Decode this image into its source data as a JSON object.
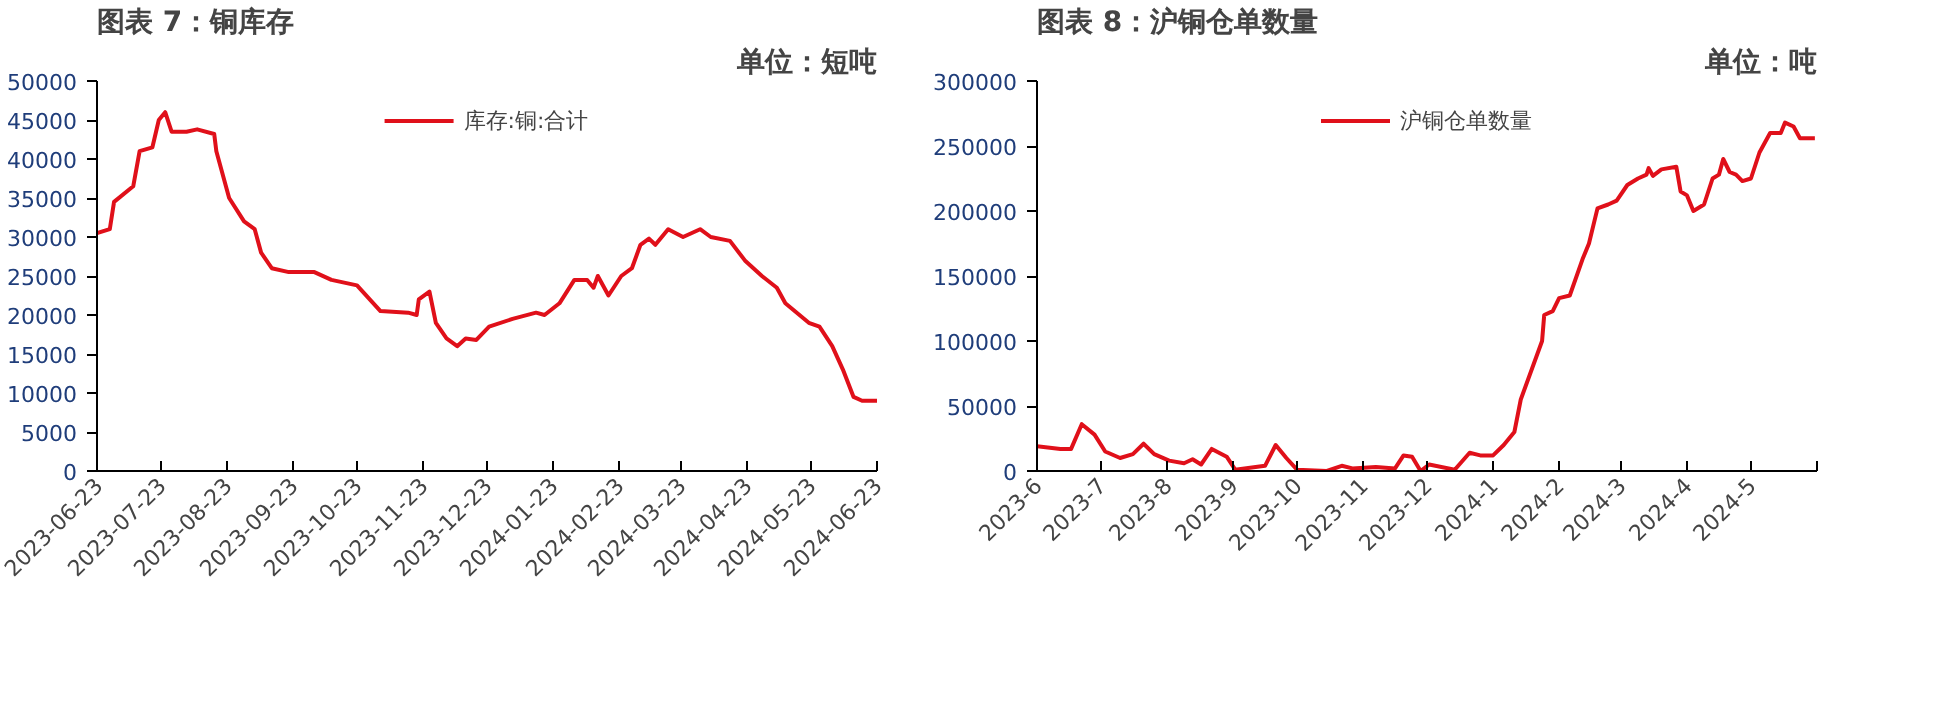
{
  "chart_data": [
    {
      "type": "line",
      "title": "图表 7：铜库存",
      "subtitle": "单位：短吨",
      "legend": "top",
      "grid": false,
      "x": [
        "2023-06-23",
        "2023-06-29",
        "2023-07-01",
        "2023-07-10",
        "2023-07-13",
        "2023-07-19",
        "2023-07-22",
        "2023-07-25",
        "2023-07-28",
        "2023-08-04",
        "2023-08-09",
        "2023-08-17",
        "2023-08-18",
        "2023-08-24",
        "2023-08-31",
        "2023-09-05",
        "2023-09-08",
        "2023-09-13",
        "2023-09-21",
        "2023-10-03",
        "2023-10-11",
        "2023-10-23",
        "2023-11-03",
        "2023-11-16",
        "2023-11-20",
        "2023-11-21",
        "2023-11-26",
        "2023-11-29",
        "2023-12-04",
        "2023-12-09",
        "2023-12-13",
        "2023-12-18",
        "2023-12-24",
        "2024-01-04",
        "2024-01-15",
        "2024-01-19",
        "2024-01-26",
        "2024-02-02",
        "2024-02-08",
        "2024-02-11",
        "2024-02-13",
        "2024-02-18",
        "2024-02-24",
        "2024-02-29",
        "2024-03-04",
        "2024-03-08",
        "2024-03-11",
        "2024-03-17",
        "2024-03-24",
        "2024-04-01",
        "2024-04-06",
        "2024-04-15",
        "2024-04-22",
        "2024-04-30",
        "2024-05-07",
        "2024-05-11",
        "2024-05-22",
        "2024-05-27",
        "2024-06-02",
        "2024-06-07",
        "2024-06-12",
        "2024-06-16",
        "2024-06-23"
      ],
      "series": [
        {
          "name": "库存:铜:合计",
          "color": "#e0101a",
          "values": [
            30500,
            31000,
            34500,
            36500,
            41000,
            41500,
            45000,
            46000,
            43500,
            43500,
            43800,
            43200,
            41000,
            35000,
            32000,
            31000,
            28000,
            26000,
            25500,
            25500,
            24500,
            23800,
            20500,
            20300,
            20000,
            22000,
            23000,
            19000,
            17000,
            16000,
            17000,
            16800,
            18500,
            19500,
            20300,
            20000,
            21500,
            24500,
            24500,
            23500,
            25000,
            22500,
            25000,
            26000,
            29000,
            29800,
            29000,
            31000,
            30000,
            31000,
            30000,
            29500,
            27000,
            25000,
            23500,
            21500,
            19000,
            18500,
            16000,
            13000,
            9500,
            9000,
            9000
          ]
        }
      ],
      "xlim": [
        "2023-06-23",
        "2024-06-23"
      ],
      "xticks": [
        "2023-06-23",
        "2023-07-23",
        "2023-08-23",
        "2023-09-23",
        "2023-10-23",
        "2023-11-23",
        "2023-12-23",
        "2024-01-23",
        "2024-02-23",
        "2024-03-23",
        "2024-04-23",
        "2024-05-23",
        "2024-06-23"
      ],
      "ylim": [
        0,
        50000
      ],
      "yticks": [
        0,
        5000,
        10000,
        15000,
        20000,
        25000,
        30000,
        35000,
        40000,
        45000,
        50000
      ]
    },
    {
      "type": "line",
      "title": "图表 8：沪铜仓单数量",
      "subtitle": "单位：吨",
      "legend": "top",
      "grid": false,
      "x": [
        "2023-06-01",
        "2023-06-12",
        "2023-06-17",
        "2023-06-22",
        "2023-06-28",
        "2023-07-03",
        "2023-07-10",
        "2023-07-16",
        "2023-07-21",
        "2023-07-26",
        "2023-08-02",
        "2023-08-09",
        "2023-08-13",
        "2023-08-17",
        "2023-08-22",
        "2023-08-29",
        "2023-09-02",
        "2023-09-16",
        "2023-09-21",
        "2023-09-26",
        "2023-10-01",
        "2023-10-15",
        "2023-10-22",
        "2023-10-27",
        "2023-11-07",
        "2023-11-16",
        "2023-11-20",
        "2023-11-24",
        "2023-11-28",
        "2023-12-02",
        "2023-12-14",
        "2023-12-21",
        "2023-12-26",
        "2024-01-01",
        "2024-01-06",
        "2024-01-11",
        "2024-01-14",
        "2024-01-24",
        "2024-01-25",
        "2024-01-29",
        "2024-02-01",
        "2024-02-06",
        "2024-02-12",
        "2024-02-15",
        "2024-02-19",
        "2024-02-24",
        "2024-02-28",
        "2024-03-04",
        "2024-03-09",
        "2024-03-13",
        "2024-03-14",
        "2024-03-16",
        "2024-03-20",
        "2024-03-27",
        "2024-03-29",
        "2024-04-01",
        "2024-04-04",
        "2024-04-09",
        "2024-04-13",
        "2024-04-16",
        "2024-04-18",
        "2024-04-21",
        "2024-04-24",
        "2024-04-27",
        "2024-05-01",
        "2024-05-05",
        "2024-05-10",
        "2024-05-15",
        "2024-05-17",
        "2024-05-21",
        "2024-05-24",
        "2024-05-31"
      ],
      "series": [
        {
          "name": "沪铜仓单数量",
          "color": "#e0101a",
          "values": [
            19000,
            17000,
            17000,
            36000,
            28000,
            15000,
            10000,
            13000,
            21000,
            13000,
            8000,
            6000,
            9000,
            5000,
            17000,
            11000,
            1000,
            4000,
            20000,
            10000,
            1000,
            0,
            4000,
            2000,
            3000,
            2000,
            12000,
            11000,
            0,
            5000,
            1000,
            14000,
            12000,
            12000,
            20000,
            30000,
            55000,
            100000,
            120000,
            123000,
            133000,
            135000,
            163000,
            175000,
            202000,
            205000,
            208000,
            220000,
            225000,
            228000,
            233000,
            227000,
            232000,
            234000,
            215000,
            212000,
            200000,
            205000,
            225000,
            228000,
            240000,
            230000,
            228000,
            223000,
            225000,
            245000,
            260000,
            260000,
            268000,
            265000,
            256000,
            256000
          ]
        }
      ],
      "xlim": [
        "2023-06-01",
        "2024-06-01"
      ],
      "xticks": [
        {
          "value": "2023-06-01",
          "label": "2023-6"
        },
        {
          "value": "2023-07-01",
          "label": "2023-7"
        },
        {
          "value": "2023-08-01",
          "label": "2023-8"
        },
        {
          "value": "2023-09-01",
          "label": "2023-9"
        },
        {
          "value": "2023-10-01",
          "label": "2023-10"
        },
        {
          "value": "2023-11-01",
          "label": "2023-11"
        },
        {
          "value": "2023-12-01",
          "label": "2023-12"
        },
        {
          "value": "2024-01-01",
          "label": "2024-1"
        },
        {
          "value": "2024-02-01",
          "label": "2024-2"
        },
        {
          "value": "2024-03-01",
          "label": "2024-3"
        },
        {
          "value": "2024-04-01",
          "label": "2024-4"
        },
        {
          "value": "2024-05-01",
          "label": "2024-5"
        },
        {
          "value": "2024-06-01",
          "label": null
        }
      ],
      "ylim": [
        0,
        300000
      ],
      "yticks": [
        0,
        50000,
        100000,
        150000,
        200000,
        250000,
        300000
      ]
    }
  ]
}
